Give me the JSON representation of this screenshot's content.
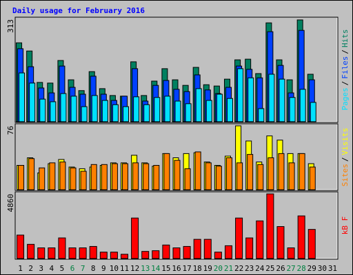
{
  "title": "Daily usage for February 2016",
  "categories": [
    "1",
    "2",
    "3",
    "4",
    "5",
    "6",
    "7",
    "8",
    "9",
    "10",
    "11",
    "12",
    "13",
    "14",
    "15",
    "16",
    "17",
    "18",
    "19",
    "20",
    "21",
    "22",
    "23",
    "24",
    "25",
    "26",
    "27",
    "28",
    "29",
    "30",
    "31"
  ],
  "label_color": "#000000",
  "weekend_color": "#008040",
  "weekend": [
    6,
    7,
    13,
    14,
    20,
    21,
    27,
    28
  ],
  "separator": "/",
  "chart_data": [
    {
      "type": "bar",
      "ylim": [
        0,
        313
      ],
      "yticks": [
        313
      ],
      "series": [
        {
          "name": "Hits",
          "color": "#008060",
          "values": [
            241,
            216,
            120,
            118,
            187,
            128,
            95,
            153,
            101,
            80,
            78,
            183,
            80,
            124,
            162,
            128,
            111,
            166,
            113,
            109,
            130,
            189,
            191,
            147,
            302,
            189,
            128,
            311,
            145,
            null,
            null
          ]
        },
        {
          "name": "Files",
          "color": "#0040ff",
          "values": [
            223,
            168,
            103,
            88,
            170,
            105,
            84,
            139,
            84,
            65,
            78,
            162,
            63,
            111,
            126,
            99,
            92,
            143,
            97,
            86,
            105,
            170,
            160,
            134,
            275,
            172,
            88,
            279,
            128,
            null,
            null
          ]
        },
        {
          "name": "Pages",
          "color": "#00e0ff",
          "values": [
            149,
            118,
            69,
            61,
            86,
            78,
            46,
            80,
            65,
            52,
            46,
            76,
            52,
            74,
            78,
            63,
            55,
            101,
            65,
            84,
            71,
            162,
            134,
            40,
            145,
            130,
            74,
            99,
            59,
            null,
            null
          ]
        }
      ]
    },
    {
      "type": "bar",
      "ylim": [
        0,
        76
      ],
      "yticks": [
        76
      ],
      "series": [
        {
          "name": "Visits",
          "color": "#ffff00",
          "values": [
            29,
            38,
            20,
            31,
            36,
            27,
            25,
            27,
            29,
            32,
            32,
            41,
            32,
            28,
            43,
            38,
            43,
            44,
            33,
            29,
            40,
            76,
            58,
            33,
            64,
            59,
            43,
            43,
            31,
            null,
            null
          ]
        },
        {
          "name": "Sites",
          "color": "#ff8000",
          "values": [
            29,
            37,
            26,
            32,
            33,
            26,
            22,
            30,
            30,
            31,
            31,
            32,
            31,
            29,
            43,
            35,
            25,
            45,
            32,
            28,
            38,
            32,
            42,
            30,
            38,
            43,
            32,
            43,
            27,
            null,
            null
          ]
        }
      ]
    },
    {
      "type": "bar",
      "ylim": [
        0,
        4860
      ],
      "yticks": [
        4860
      ],
      "series": [
        {
          "name": "kB F",
          "color": "#ff0000",
          "values": [
            1762,
            1068,
            801,
            801,
            1549,
            801,
            801,
            908,
            481,
            481,
            320,
            3044,
            534,
            587,
            1015,
            801,
            908,
            1442,
            1442,
            481,
            961,
            3044,
            1549,
            2830,
            4860,
            2403,
            801,
            3204,
            2189,
            null,
            null
          ]
        }
      ]
    }
  ]
}
